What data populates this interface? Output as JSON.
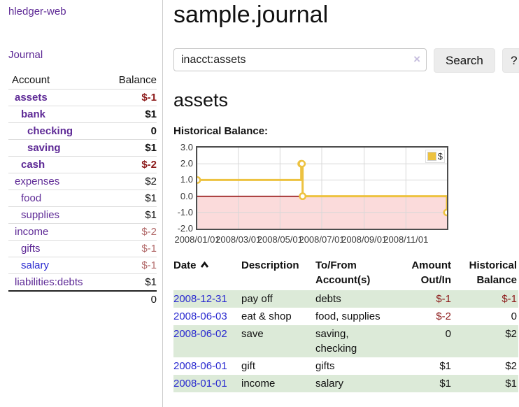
{
  "app": {
    "title": "hledger-web"
  },
  "nav": {
    "journal": "Journal"
  },
  "sidebar": {
    "header": {
      "account": "Account",
      "balance": "Balance"
    },
    "accounts": [
      {
        "name": "assets",
        "level": 1,
        "bold": true,
        "name_style": "purple",
        "balance": "$-1",
        "balance_style": "neg-strong"
      },
      {
        "name": "bank",
        "level": 2,
        "bold": true,
        "name_style": "purple",
        "balance": "$1",
        "balance_style": "pos"
      },
      {
        "name": "checking",
        "level": 3,
        "bold": true,
        "name_style": "purple",
        "balance": "0",
        "balance_style": "pos"
      },
      {
        "name": "saving",
        "level": 3,
        "bold": true,
        "name_style": "purple",
        "balance": "$1",
        "balance_style": "pos"
      },
      {
        "name": "cash",
        "level": 2,
        "bold": true,
        "name_style": "purple",
        "balance": "$-2",
        "balance_style": "neg-strong"
      },
      {
        "name": "expenses",
        "level": 1,
        "bold": false,
        "name_style": "purple",
        "balance": "$2",
        "balance_style": "pos"
      },
      {
        "name": "food",
        "level": 2,
        "bold": false,
        "name_style": "purple",
        "balance": "$1",
        "balance_style": "pos"
      },
      {
        "name": "supplies",
        "level": 2,
        "bold": false,
        "name_style": "purple",
        "balance": "$1",
        "balance_style": "pos"
      },
      {
        "name": "income",
        "level": 1,
        "bold": false,
        "name_style": "purple",
        "balance": "$-2",
        "balance_style": "neg-muted"
      },
      {
        "name": "gifts",
        "level": 2,
        "bold": false,
        "name_style": "purple",
        "balance": "$-1",
        "balance_style": "neg-muted"
      },
      {
        "name": "salary",
        "level": 2,
        "bold": false,
        "name_style": "blue",
        "balance": "$-1",
        "balance_style": "neg-muted"
      },
      {
        "name": "liabilities:debts",
        "level": 1,
        "bold": false,
        "name_style": "purple",
        "balance": "$1",
        "balance_style": "pos"
      }
    ],
    "total": "0"
  },
  "main": {
    "title": "sample.journal",
    "search": {
      "query": "inacct:assets",
      "clear": "×",
      "button": "Search",
      "help": "?"
    },
    "account_heading": "assets",
    "chart_label": "Historical Balance:"
  },
  "chart_data": {
    "type": "line",
    "step": true,
    "title": "Historical Balance",
    "series": [
      {
        "name": "$",
        "color": "#edc240",
        "points": [
          [
            "2008/01/01",
            1
          ],
          [
            "2008/06/01",
            2
          ],
          [
            "2008/06/02",
            2
          ],
          [
            "2008/06/03",
            0
          ],
          [
            "2008/12/31",
            -1
          ]
        ]
      }
    ],
    "x_range": [
      "2008/01/01",
      "2008/12/31"
    ],
    "x_ticks": [
      "2008/01/01",
      "2008/03/01",
      "2008/05/01",
      "2008/07/01",
      "2008/09/01",
      "2008/11/01"
    ],
    "y_ticks": [
      3.0,
      2.0,
      1.0,
      0.0,
      -1.0,
      -2.0
    ],
    "ylim": [
      -2,
      3
    ],
    "grid": true,
    "legend": "$",
    "legend_position": "top-right",
    "negative_region_color": "#fbdbdb",
    "zero_line_color": "#8b0000",
    "grid_color": "#d8d8d8"
  },
  "register": {
    "headers": [
      {
        "label": "Date",
        "sorted": "asc"
      },
      {
        "label": "Description"
      },
      {
        "label": "To/From Account(s)"
      },
      {
        "label": "Amount Out/In",
        "align": "right"
      },
      {
        "label": "Historical Balance",
        "align": "right"
      }
    ],
    "rows": [
      {
        "date": "2008-12-31",
        "description": "pay off",
        "accounts": "debts",
        "amount": "$-1",
        "amount_neg": true,
        "balance": "$-1",
        "balance_neg": true
      },
      {
        "date": "2008-06-03",
        "description": "eat & shop",
        "accounts": "food, supplies",
        "amount": "$-2",
        "amount_neg": true,
        "balance": "0",
        "balance_neg": false
      },
      {
        "date": "2008-06-02",
        "description": "save",
        "accounts": "saving, checking",
        "amount": "0",
        "amount_neg": false,
        "balance": "$2",
        "balance_neg": false
      },
      {
        "date": "2008-06-01",
        "description": "gift",
        "accounts": "gifts",
        "amount": "$1",
        "amount_neg": false,
        "balance": "$2",
        "balance_neg": false
      },
      {
        "date": "2008-01-01",
        "description": "income",
        "accounts": "salary",
        "amount": "$1",
        "amount_neg": false,
        "balance": "$1",
        "balance_neg": false
      }
    ]
  },
  "colors": {
    "link_purple": "#5e2a96",
    "link_blue": "#2a2ad0",
    "negative_strong": "#8c1919",
    "negative_muted": "#b26a6a",
    "row_green": "#dcead8",
    "series_gold": "#edc240"
  }
}
